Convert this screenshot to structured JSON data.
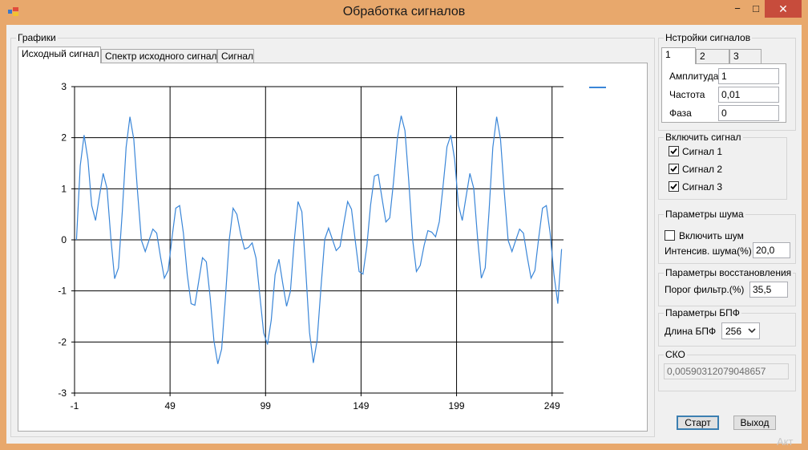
{
  "window": {
    "title": "Обработка сигналов",
    "minimize": "−",
    "maximize": "□",
    "close": "✕"
  },
  "graphs": {
    "group_title": "Графики",
    "tabs": [
      "Исходный сигнал",
      "Спектр исходного сигнала",
      "Сигнал"
    ],
    "active_tab": 0
  },
  "signal_settings": {
    "group_title": "Нстройки сигналов",
    "tabs": [
      "1",
      "2",
      "3"
    ],
    "active_tab": 0,
    "amplitude_label": "Амплитуда",
    "amplitude_value": "1",
    "frequency_label": "Частота",
    "frequency_value": "0,01",
    "phase_label": "Фаза",
    "phase_value": "0"
  },
  "enable_signal": {
    "group_title": "Включить сигнал",
    "items": [
      {
        "label": "Сигнал 1",
        "checked": true
      },
      {
        "label": "Сигнал 2",
        "checked": true
      },
      {
        "label": "Сигнал 3",
        "checked": true
      }
    ]
  },
  "noise": {
    "group_title": "Параметры шума",
    "enable_label": "Включить шум",
    "enable_checked": false,
    "intensity_label": "Интенсив. шума(%)",
    "intensity_value": "20,0"
  },
  "recovery": {
    "group_title": "Параметры восстановления",
    "threshold_label": "Порог фильтр.(%)",
    "threshold_value": "35,5"
  },
  "fft": {
    "group_title": "Параметры БПФ",
    "length_label": "Длина БПФ",
    "length_value": "256"
  },
  "rms": {
    "group_title": "СКО",
    "value": "0,00590312079048657"
  },
  "buttons": {
    "start": "Старт",
    "exit": "Выход"
  },
  "watermark": "Акт",
  "colors": {
    "series": "#3a86d8",
    "titlebar": "#e8a86c",
    "close": "#c74c3c"
  },
  "chart_data": {
    "type": "line",
    "title": "",
    "xlabel": "",
    "ylabel": "",
    "xlim": [
      -1,
      255
    ],
    "ylim": [
      -3,
      3
    ],
    "x_ticks": [
      -1,
      49,
      99,
      149,
      199,
      249
    ],
    "y_ticks": [
      3,
      2,
      1,
      0,
      -1,
      -2,
      -3
    ],
    "grid": true,
    "legend": "top-right",
    "series": [
      {
        "x": [
          0,
          2,
          4,
          6,
          8,
          10,
          12,
          14,
          16,
          18,
          20,
          22,
          24,
          26,
          28,
          30,
          32,
          34,
          36,
          38,
          40,
          42,
          44,
          46,
          48,
          50,
          52,
          54,
          56,
          58,
          60,
          62,
          64,
          66,
          68,
          70,
          72,
          74,
          76,
          78,
          80,
          82,
          84,
          86,
          88,
          90,
          92,
          94,
          96,
          98,
          100,
          102,
          104,
          106,
          108,
          110,
          112,
          114,
          116,
          118,
          120,
          122,
          124,
          126,
          128,
          130,
          132,
          134,
          136,
          138,
          140,
          142,
          144,
          146,
          148,
          150,
          152,
          154,
          156,
          158,
          160,
          162,
          164,
          166,
          168,
          170,
          172,
          174,
          176,
          178,
          180,
          182,
          184,
          186,
          188,
          190,
          192,
          194,
          196,
          198,
          200,
          202,
          204,
          206,
          208,
          210,
          212,
          214,
          216,
          218,
          220,
          222,
          224,
          226,
          228,
          230,
          232,
          234,
          236,
          238,
          240,
          242,
          244,
          246,
          248,
          250,
          252,
          254
        ],
        "y": [
          0,
          1.45,
          2.05,
          1.57,
          0.67,
          0.38,
          0.85,
          1.3,
          1.01,
          0.03,
          -0.76,
          -0.55,
          0.56,
          1.81,
          2.41,
          1.97,
          0.94,
          -0.01,
          -0.23,
          -0.01,
          0.21,
          0.13,
          -0.33,
          -0.75,
          -0.6,
          0.03,
          0.62,
          0.67,
          0.13,
          -0.68,
          -1.25,
          -1.28,
          -0.81,
          -0.35,
          -0.43,
          -1.13,
          -1.98,
          -2.43,
          -2.14,
          -1.14,
          0,
          0.62,
          0.5,
          0.11,
          -0.18,
          -0.15,
          -0.06,
          -0.36,
          -1.08,
          -1.82,
          -2.05,
          -1.57,
          -0.68,
          -0.38,
          -0.85,
          -1.3,
          -1.01,
          -0.03,
          0.75,
          0.55,
          -0.56,
          -1.81,
          -2.41,
          -1.97,
          -0.94,
          0.01,
          0.23,
          0.01,
          -0.21,
          -0.13,
          0.33,
          0.75,
          0.6,
          -0.03,
          -0.62,
          -0.67,
          -0.13,
          0.68,
          1.25,
          1.28,
          0.81,
          0.35,
          0.43,
          1.13,
          1.98,
          2.43,
          2.14,
          1.14,
          0,
          -0.62,
          -0.5,
          -0.11,
          0.18,
          0.15,
          0.06,
          0.36,
          1.08,
          1.82,
          2.05,
          1.57,
          0.68,
          0.38,
          0.85,
          1.3,
          1.01,
          0.03,
          -0.75,
          -0.55,
          0.56,
          1.81,
          2.41,
          1.97,
          0.94,
          -0.01,
          -0.23,
          -0.01,
          0.21,
          0.13,
          -0.33,
          -0.75,
          -0.6,
          0.03,
          0.62,
          0.67,
          0.13,
          -0.68,
          -1.25,
          -0.18
        ]
      }
    ]
  }
}
